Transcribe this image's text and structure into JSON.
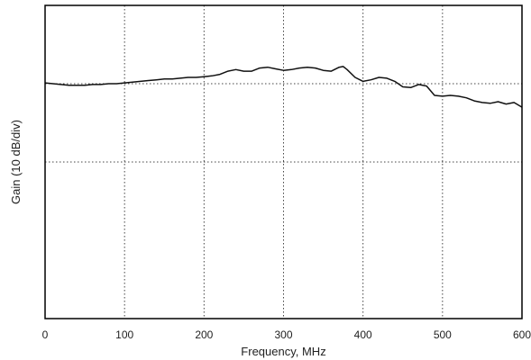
{
  "chart_data": {
    "type": "line",
    "title": "",
    "xlabel": "Frequency, MHz",
    "ylabel": "Gain (10 dB/div)",
    "xlim": [
      0,
      600
    ],
    "x_ticks": [
      0,
      100,
      200,
      300,
      400,
      500,
      600
    ],
    "x_tick_labels": [
      "0",
      "100",
      "200",
      "300",
      "400",
      "500",
      "600"
    ],
    "ylim": [
      -30,
      10
    ],
    "y_gridlines": [
      0,
      -10
    ],
    "grid": true,
    "grid_style": "dotted",
    "colors": {
      "line": "#111111",
      "grid": "#444444",
      "frame": "#000000"
    },
    "series": [
      {
        "x": [
          0,
          10,
          20,
          30,
          40,
          50,
          60,
          70,
          80,
          90,
          100,
          110,
          120,
          130,
          140,
          150,
          160,
          170,
          180,
          190,
          200,
          210,
          220,
          230,
          240,
          250,
          260,
          270,
          280,
          290,
          300,
          310,
          320,
          330,
          340,
          350,
          360,
          370,
          375,
          380,
          390,
          400,
          410,
          420,
          430,
          440,
          450,
          460,
          470,
          480,
          490,
          500,
          510,
          520,
          530,
          540,
          550,
          560,
          570,
          580,
          590,
          600
        ],
        "y": [
          0.1,
          0.0,
          -0.1,
          -0.2,
          -0.2,
          -0.2,
          -0.1,
          -0.1,
          0.0,
          0.0,
          0.1,
          0.2,
          0.3,
          0.4,
          0.5,
          0.6,
          0.6,
          0.7,
          0.8,
          0.8,
          0.9,
          1.0,
          1.2,
          1.6,
          1.8,
          1.6,
          1.6,
          2.0,
          2.1,
          1.9,
          1.7,
          1.8,
          2.0,
          2.1,
          2.0,
          1.7,
          1.6,
          2.1,
          2.2,
          1.8,
          0.8,
          0.3,
          0.5,
          0.8,
          0.7,
          0.3,
          -0.4,
          -0.5,
          -0.1,
          -0.3,
          -1.5,
          -1.6,
          -1.5,
          -1.6,
          -1.8,
          -2.2,
          -2.4,
          -2.5,
          -2.3,
          -2.6,
          -2.4,
          -3.0
        ]
      }
    ]
  }
}
